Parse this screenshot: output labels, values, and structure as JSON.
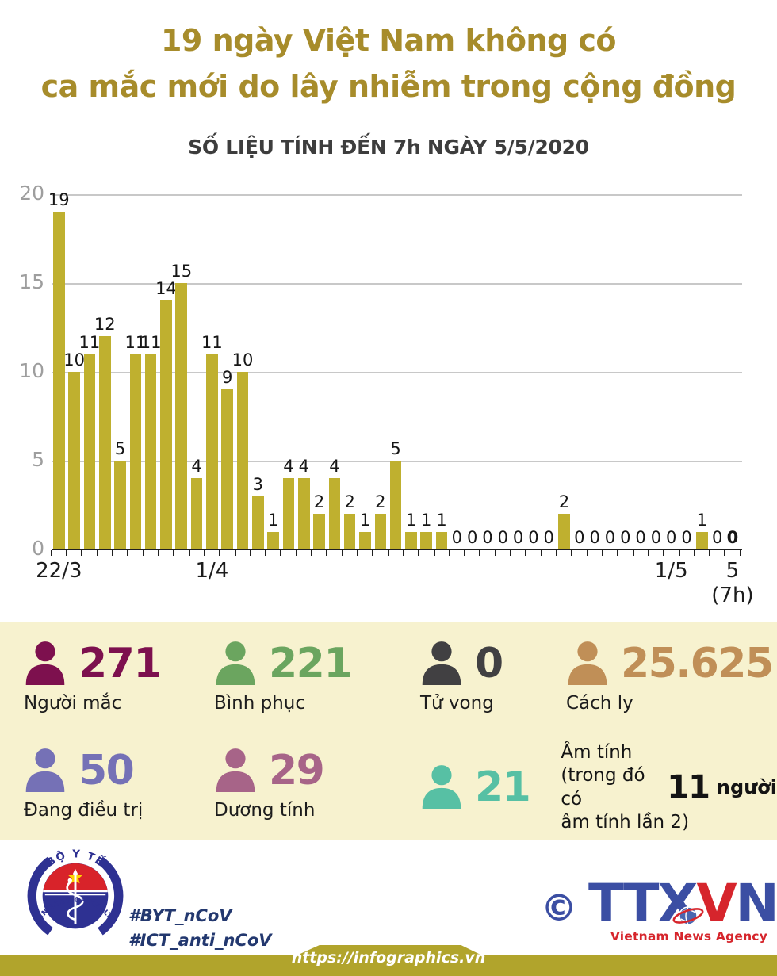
{
  "title": {
    "line1": "19 ngày Việt Nam không có",
    "line2": "ca mắc mới do lây nhiễm trong cộng đồng",
    "color": "#a78c2b"
  },
  "subtitle": {
    "text": "SỐ LIỆU TÍNH ĐẾN 7h NGÀY 5/5/2020",
    "color": "#3d3d3d"
  },
  "chart_data": {
    "type": "bar",
    "values": [
      19,
      10,
      11,
      12,
      5,
      11,
      11,
      14,
      15,
      4,
      11,
      9,
      10,
      3,
      1,
      4,
      4,
      2,
      4,
      2,
      1,
      2,
      5,
      1,
      1,
      1,
      0,
      0,
      0,
      0,
      0,
      0,
      0,
      2,
      0,
      0,
      0,
      0,
      0,
      0,
      0,
      0,
      1,
      0,
      0
    ],
    "ylim": [
      0,
      20
    ],
    "y_ticks": [
      0,
      5,
      10,
      15,
      20
    ],
    "x_tick_labels": [
      {
        "index": 0,
        "label": "22/3"
      },
      {
        "index": 10,
        "label": "1/4"
      },
      {
        "index": 40,
        "label": "1/5"
      },
      {
        "index": 44,
        "label": "5",
        "sublabel": "(7h)"
      }
    ],
    "grid": "horizontal",
    "legend": "none",
    "last_value_bold": true,
    "bar_color": "#bfb02f",
    "value_label_color": "#161616",
    "axis_color": "#1f1f1f",
    "grid_color": "#c8c8c8",
    "y_label_color": "#9e9e9e",
    "x_label_color": "#1c1c1c"
  },
  "stats": {
    "panel_bg": "#f7f2cf",
    "items": [
      {
        "value": "271",
        "label": "Người mắc",
        "color": "#7d104e"
      },
      {
        "value": "221",
        "label": "Bình phục",
        "color": "#6ba55f"
      },
      {
        "value": "0",
        "label": "Tử vong",
        "color": "#414042"
      },
      {
        "value": "25.625",
        "label": "Cách ly",
        "color": "#c08f57"
      },
      {
        "value": "50",
        "label": "Đang điều trị",
        "color": "#7571b6"
      },
      {
        "value": "29",
        "label": "Dương tính",
        "color": "#a76488"
      },
      {
        "value": "21",
        "label": "Âm tính",
        "color": "#57c0a4",
        "note": {
          "line1": "Âm tính",
          "line2_pre": "(trong đó có",
          "big": "11",
          "line2_post": "người",
          "line3": "âm tính lần 2)"
        }
      }
    ]
  },
  "footer": {
    "moh": {
      "top": "BỘ Y TẾ",
      "bottom": "MINISTRY OF HEALTH"
    },
    "hashtag1": "#BYT_nCoV",
    "hashtag2": "#ICT_anti_nCoV",
    "hashtag_color": "#23386f",
    "ttxvn": {
      "copyright": "©",
      "ttx": "TTX",
      "v": "V",
      "n": "N",
      "agency": "Vietnam News Agency",
      "blue": "#3b4ea3",
      "red": "#d6252c"
    },
    "url": "https://infographics.vn",
    "band_color": "#b1a42c"
  }
}
